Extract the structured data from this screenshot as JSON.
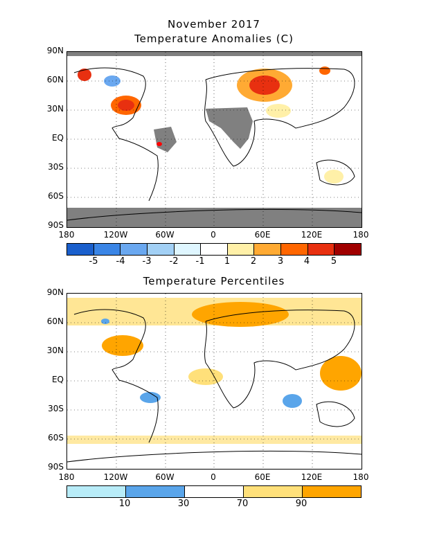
{
  "titles": {
    "main": "November 2017",
    "anomalies": "Temperature Anomalies (C)",
    "percentiles": "Temperature Percentiles"
  },
  "axes": {
    "lat_labels": [
      "90N",
      "60N",
      "30N",
      "EQ",
      "30S",
      "60S",
      "90S"
    ],
    "lon_labels": [
      "180",
      "120W",
      "60W",
      "0",
      "60E",
      "120E",
      "180"
    ]
  },
  "anomaly_colorbar": {
    "colors": [
      "#1a5fcc",
      "#3a85e6",
      "#6aa8f0",
      "#a2d0f5",
      "#dff6ff",
      "#ffffff",
      "#fff0a8",
      "#ffaa33",
      "#ff6600",
      "#e83010",
      "#a00000"
    ],
    "labels": [
      "-5",
      "-4",
      "-3",
      "-2",
      "-1",
      "1",
      "2",
      "3",
      "4",
      "5"
    ]
  },
  "percentile_colorbar": {
    "colors": [
      "#b8ecf8",
      "#5aa5ea",
      "#ffffff",
      "#ffe07a",
      "#ffa500"
    ],
    "labels": [
      "10",
      "30",
      "70",
      "90"
    ]
  },
  "colors": {
    "missing": "#808080",
    "land_outline": "#000000"
  }
}
